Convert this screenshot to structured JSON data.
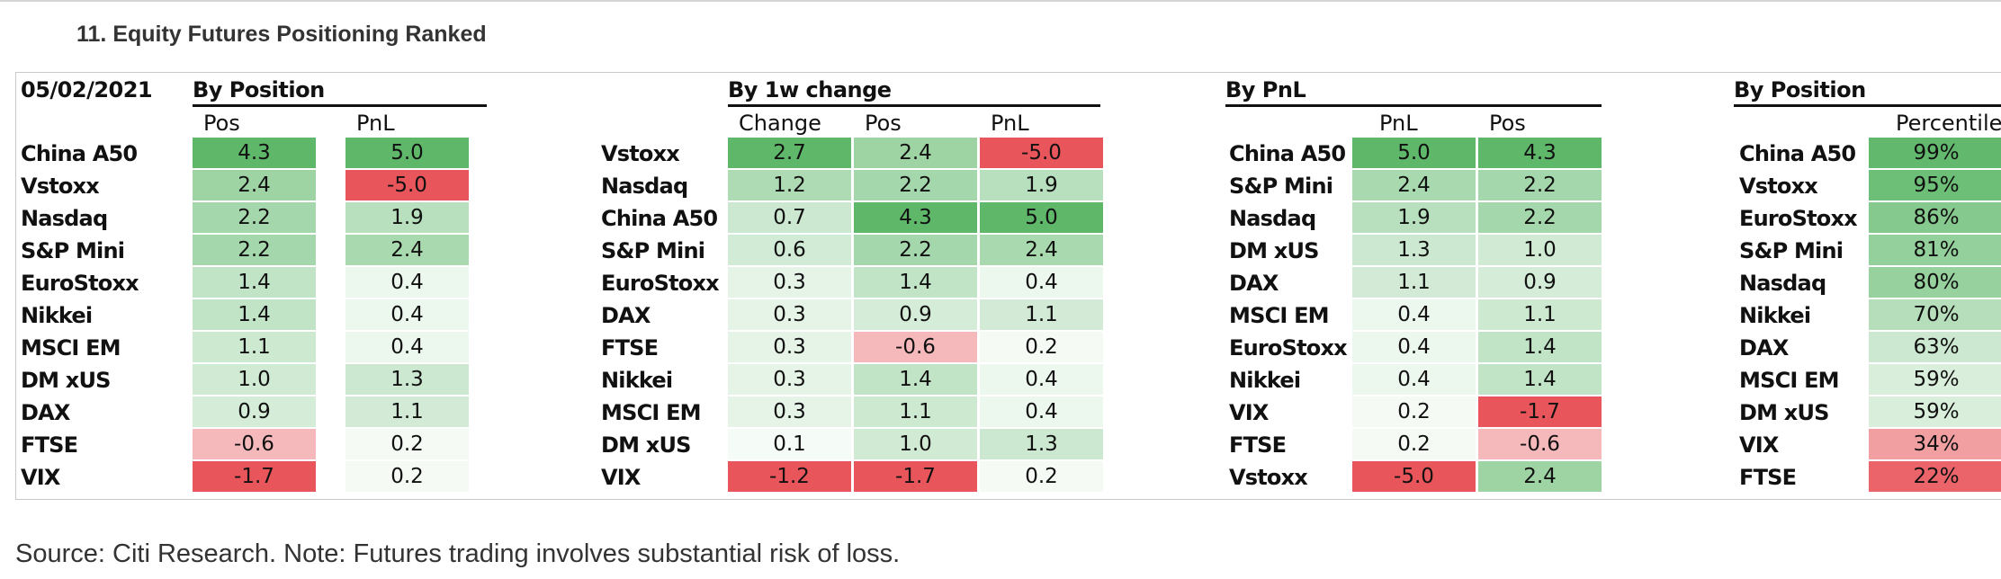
{
  "title": "11. Equity Futures Positioning Ranked",
  "date": "05/02/2021",
  "source_note": "Source: Citi Research. Note: Futures trading involves substantial risk of loss.",
  "colors": {
    "green_strong": "#5fb86a",
    "red_strong": "#e8555b",
    "neutral": "#ffffff"
  },
  "tables": [
    {
      "group_title": "By Position",
      "columns": [
        "Pos",
        "PnL"
      ],
      "rows": [
        {
          "name": "China A50",
          "values": [
            "4.3",
            "5.0"
          ]
        },
        {
          "name": "Vstoxx",
          "values": [
            "2.4",
            "-5.0"
          ]
        },
        {
          "name": "Nasdaq",
          "values": [
            "2.2",
            "1.9"
          ]
        },
        {
          "name": "S&P Mini",
          "values": [
            "2.2",
            "2.4"
          ]
        },
        {
          "name": "EuroStoxx",
          "values": [
            "1.4",
            "0.4"
          ]
        },
        {
          "name": "Nikkei",
          "values": [
            "1.4",
            "0.4"
          ]
        },
        {
          "name": "MSCI EM",
          "values": [
            "1.1",
            "0.4"
          ]
        },
        {
          "name": "DM xUS",
          "values": [
            "1.0",
            "1.3"
          ]
        },
        {
          "name": "DAX",
          "values": [
            "0.9",
            "1.1"
          ]
        },
        {
          "name": "FTSE",
          "values": [
            "-0.6",
            "0.2"
          ]
        },
        {
          "name": "VIX",
          "values": [
            "-1.7",
            "0.2"
          ]
        }
      ]
    },
    {
      "group_title": "By 1w change",
      "columns": [
        "Change",
        "Pos",
        "PnL"
      ],
      "rows": [
        {
          "name": "Vstoxx",
          "values": [
            "2.7",
            "2.4",
            "-5.0"
          ]
        },
        {
          "name": "Nasdaq",
          "values": [
            "1.2",
            "2.2",
            "1.9"
          ]
        },
        {
          "name": "China A50",
          "values": [
            "0.7",
            "4.3",
            "5.0"
          ]
        },
        {
          "name": "S&P Mini",
          "values": [
            "0.6",
            "2.2",
            "2.4"
          ]
        },
        {
          "name": "EuroStoxx",
          "values": [
            "0.3",
            "1.4",
            "0.4"
          ]
        },
        {
          "name": "DAX",
          "values": [
            "0.3",
            "0.9",
            "1.1"
          ]
        },
        {
          "name": "FTSE",
          "values": [
            "0.3",
            "-0.6",
            "0.2"
          ]
        },
        {
          "name": "Nikkei",
          "values": [
            "0.3",
            "1.4",
            "0.4"
          ]
        },
        {
          "name": "MSCI EM",
          "values": [
            "0.3",
            "1.1",
            "0.4"
          ]
        },
        {
          "name": "DM xUS",
          "values": [
            "0.1",
            "1.0",
            "1.3"
          ]
        },
        {
          "name": "VIX",
          "values": [
            "-1.2",
            "-1.7",
            "0.2"
          ]
        }
      ]
    },
    {
      "group_title": "By PnL",
      "columns": [
        "PnL",
        "Pos"
      ],
      "rows": [
        {
          "name": "China A50",
          "values": [
            "5.0",
            "4.3"
          ]
        },
        {
          "name": "S&P Mini",
          "values": [
            "2.4",
            "2.2"
          ]
        },
        {
          "name": "Nasdaq",
          "values": [
            "1.9",
            "2.2"
          ]
        },
        {
          "name": "DM xUS",
          "values": [
            "1.3",
            "1.0"
          ]
        },
        {
          "name": "DAX",
          "values": [
            "1.1",
            "0.9"
          ]
        },
        {
          "name": "MSCI EM",
          "values": [
            "0.4",
            "1.1"
          ]
        },
        {
          "name": "EuroStoxx",
          "values": [
            "0.4",
            "1.4"
          ]
        },
        {
          "name": "Nikkei",
          "values": [
            "0.4",
            "1.4"
          ]
        },
        {
          "name": "VIX",
          "values": [
            "0.2",
            "-1.7"
          ]
        },
        {
          "name": "FTSE",
          "values": [
            "0.2",
            "-0.6"
          ]
        },
        {
          "name": "Vstoxx",
          "values": [
            "-5.0",
            "2.4"
          ]
        }
      ]
    },
    {
      "group_title": "By Position",
      "columns": [
        "Percentile"
      ],
      "rows": [
        {
          "name": "China A50",
          "values": [
            "99%"
          ]
        },
        {
          "name": "Vstoxx",
          "values": [
            "95%"
          ]
        },
        {
          "name": "EuroStoxx",
          "values": [
            "86%"
          ]
        },
        {
          "name": "S&P Mini",
          "values": [
            "81%"
          ]
        },
        {
          "name": "Nasdaq",
          "values": [
            "80%"
          ]
        },
        {
          "name": "Nikkei",
          "values": [
            "70%"
          ]
        },
        {
          "name": "DAX",
          "values": [
            "63%"
          ]
        },
        {
          "name": "MSCI EM",
          "values": [
            "59%"
          ]
        },
        {
          "name": "DM xUS",
          "values": [
            "59%"
          ]
        },
        {
          "name": "VIX",
          "values": [
            "34%"
          ]
        },
        {
          "name": "FTSE",
          "values": [
            "22%"
          ]
        }
      ]
    }
  ]
}
